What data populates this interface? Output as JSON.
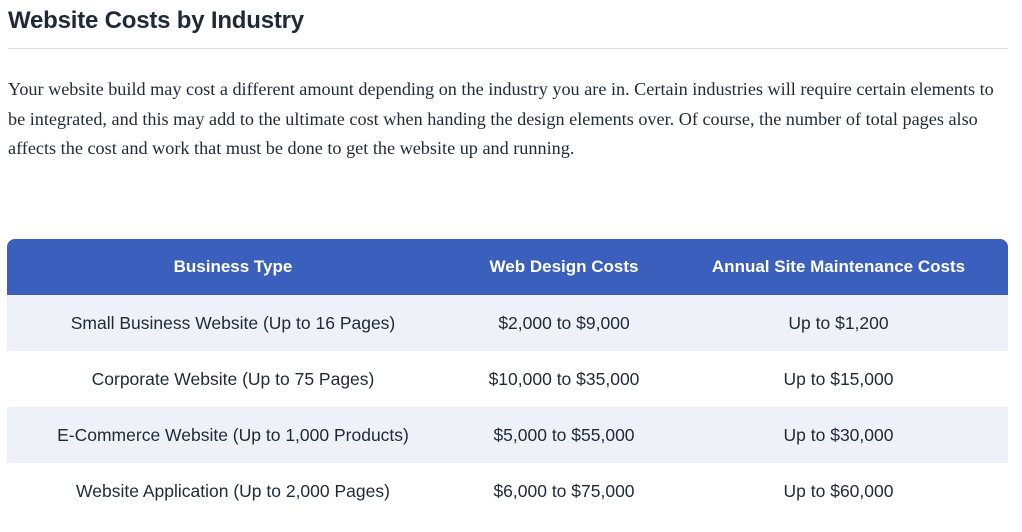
{
  "section": {
    "title": "Website Costs by Industry",
    "intro": "Your website build may cost a different amount depending on the industry you are in. Certain industries will require certain elements to be integrated, and this may add to the ultimate cost when handing the design elements over. Of course, the number of total pages also affects the cost and work that must be done to get the website up and running."
  },
  "table": {
    "headers": [
      "Business Type",
      "Web Design Costs",
      "Annual Site Maintenance Costs"
    ],
    "rows": [
      [
        "Small Business Website (Up to 16 Pages)",
        "$2,000 to $9,000",
        "Up to $1,200"
      ],
      [
        "Corporate Website (Up to 75 Pages)",
        "$10,000 to $35,000",
        "Up to $15,000"
      ],
      [
        "E-Commerce Website (Up to 1,000 Products)",
        "$5,000 to $55,000",
        "Up to $30,000"
      ],
      [
        "Website Application (Up to 2,000 Pages)",
        "$6,000 to $75,000",
        "Up to $60,000"
      ]
    ]
  },
  "colors": {
    "header_bg": "#3a5fbd",
    "stripe_bg": "#eef1f7",
    "text": "#1f2937"
  }
}
